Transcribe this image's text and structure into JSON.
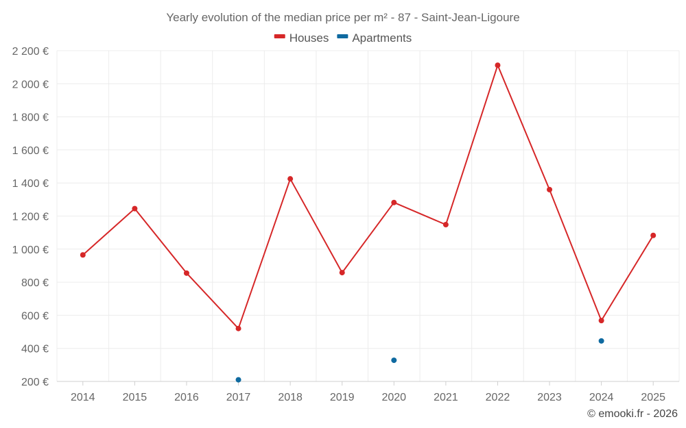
{
  "chart_data": {
    "type": "line",
    "title": "Yearly evolution of the median price per m² - 87 - Saint-Jean-Ligoure",
    "categories": [
      "2014",
      "2015",
      "2016",
      "2017",
      "2018",
      "2019",
      "2020",
      "2021",
      "2022",
      "2023",
      "2024",
      "2025"
    ],
    "series": [
      {
        "name": "Houses",
        "color": "#d62728",
        "values": [
          965,
          1245,
          855,
          520,
          1425,
          858,
          1282,
          1148,
          2112,
          1360,
          568,
          1083
        ]
      },
      {
        "name": "Apartments",
        "color": "#0f6aa0",
        "values": [
          null,
          null,
          null,
          210,
          null,
          null,
          328,
          null,
          null,
          null,
          445,
          null
        ]
      }
    ],
    "ylim": [
      200,
      2200
    ],
    "yticks": [
      200,
      400,
      600,
      800,
      1000,
      1200,
      1400,
      1600,
      1800,
      2000,
      2200
    ],
    "ytick_labels": [
      "200 €",
      "400 €",
      "600 €",
      "800 €",
      "1 000 €",
      "1 200 €",
      "1 400 €",
      "1 600 €",
      "1 800 €",
      "2 000 €",
      "2 200 €"
    ],
    "xlabel": "",
    "ylabel": "",
    "grid": true,
    "legend_position": "top-center"
  },
  "credit": "© emooki.fr - 2026"
}
